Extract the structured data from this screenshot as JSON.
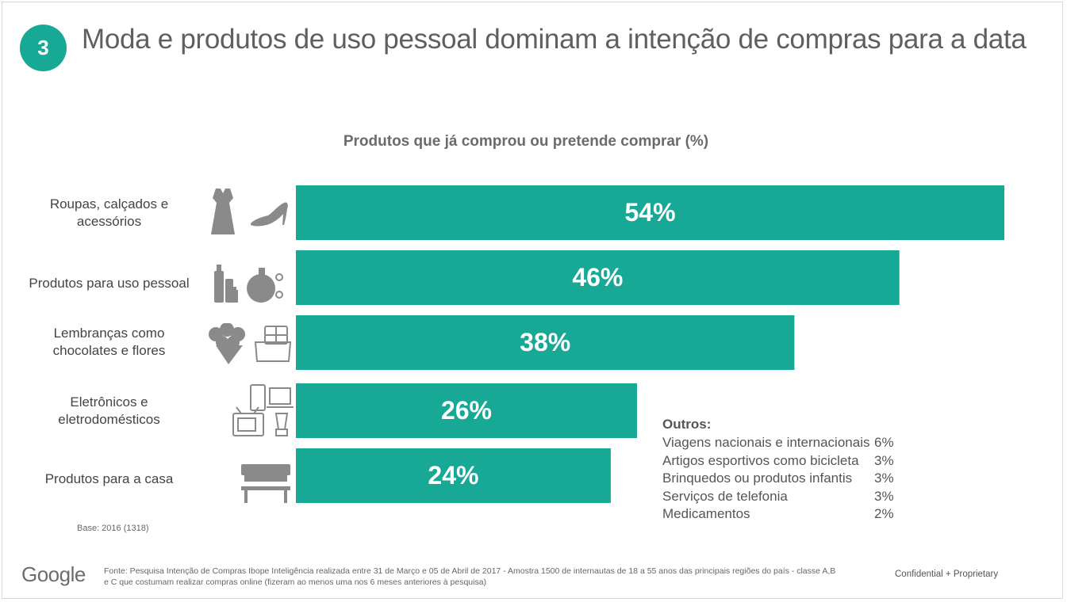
{
  "slide": {
    "number": "3",
    "title": "Moda e produtos de uso pessoal dominam a intenção de compras para a data"
  },
  "chart_data": {
    "type": "bar",
    "orientation": "horizontal",
    "title": "Produtos que já comprou ou pretende comprar (%)",
    "categories": [
      "Roupas, calçados e acessórios",
      "Produtos para uso pessoal",
      "Lembranças como chocolates e flores",
      "Eletrônicos e eletrodomésticos",
      "Produtos para a casa"
    ],
    "values": [
      54,
      46,
      38,
      26,
      24
    ],
    "value_labels": [
      "54%",
      "46%",
      "38%",
      "26%",
      "24%"
    ],
    "bar_color": "#17a896",
    "icons": [
      [
        "dress-icon",
        "high-heel-shoe-icon"
      ],
      [
        "cosmetics-icon",
        "perfume-icon"
      ],
      [
        "flower-bouquet-icon",
        "chocolate-box-icon"
      ],
      [
        "smartphone-laptop-tv-blender-icon"
      ],
      [
        "sofa-table-icon"
      ]
    ]
  },
  "others": {
    "title": "Outros:",
    "items": [
      {
        "name": "Viagens nacionais e internacionais",
        "value": "6%"
      },
      {
        "name": "Artigos esportivos como bicicleta",
        "value": "3%"
      },
      {
        "name": "Brinquedos ou produtos infantis",
        "value": "3%"
      },
      {
        "name": "Serviços de telefonia",
        "value": "3%"
      },
      {
        "name": "Medicamentos",
        "value": "2%"
      }
    ]
  },
  "footer": {
    "base": "Base: 2016 (1318)",
    "logo": "Google",
    "source": "Fonte: Pesquisa Intenção de Compras Ibope Inteligência realizada entre 31 de Março e 05 de Abril de 2017 - Amostra 1500 de internautas de 18 a 55 anos das principais regiões do país - classe A,B e C que costumam realizar compras online (fizeram ao menos uma nos 6 meses anteriores à pesquisa)",
    "confidential": "Confidential + Proprietary"
  },
  "colors": {
    "accent": "#17a896",
    "icon_gray": "#8a8a8a"
  }
}
